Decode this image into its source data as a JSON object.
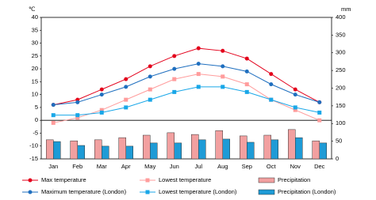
{
  "chart_data": {
    "type": "combo",
    "y_label": "℃",
    "y2_label": "mm",
    "categories": [
      "Jan",
      "Feb",
      "Mar",
      "Apr",
      "May",
      "Jun",
      "Jul",
      "Aug",
      "Sep",
      "Oct",
      "Nov",
      "Dec"
    ],
    "ylim": [
      -15,
      40
    ],
    "yticks": [
      -15,
      -10,
      -5,
      0,
      5,
      10,
      15,
      20,
      25,
      30,
      35,
      40
    ],
    "y2lim": [
      0,
      400
    ],
    "y2ticks": [
      0,
      50,
      100,
      150,
      200,
      250,
      300,
      350,
      400
    ],
    "series": [
      {
        "name": "Max temperature",
        "type": "line",
        "marker": "circle",
        "color": "#e3001b",
        "values": [
          6,
          8,
          12,
          16,
          21,
          25,
          28,
          27,
          24,
          18,
          12,
          7
        ]
      },
      {
        "name": "Lowest temperature",
        "type": "line",
        "marker": "square",
        "color": "#ff9c9c",
        "values": [
          -1,
          1,
          4,
          8,
          12,
          16,
          18,
          17,
          14,
          8,
          4,
          0
        ]
      },
      {
        "name": "Precipitation",
        "type": "bar",
        "axis": "y2",
        "color": "#f2a0a0",
        "values": [
          54,
          51,
          54,
          60,
          67,
          74,
          69,
          80,
          65,
          67,
          83,
          51
        ]
      },
      {
        "name": "Maximum temperature (London)",
        "type": "line",
        "marker": "circle",
        "color": "#1f6fbf",
        "values": [
          6,
          7,
          10,
          13,
          17,
          20,
          22,
          21,
          19,
          14,
          10,
          7
        ]
      },
      {
        "name": "Lowest temperature (London)",
        "type": "line",
        "marker": "square",
        "color": "#19a7e8",
        "values": [
          2,
          2,
          3,
          5,
          8,
          11,
          13,
          13,
          11,
          8,
          5,
          3
        ]
      },
      {
        "name": "Precipitation (London)",
        "type": "bar",
        "axis": "y2",
        "color": "#1e9bd6",
        "values": [
          49,
          38,
          36,
          36,
          45,
          45,
          54,
          56,
          47,
          54,
          60,
          45
        ]
      }
    ]
  }
}
